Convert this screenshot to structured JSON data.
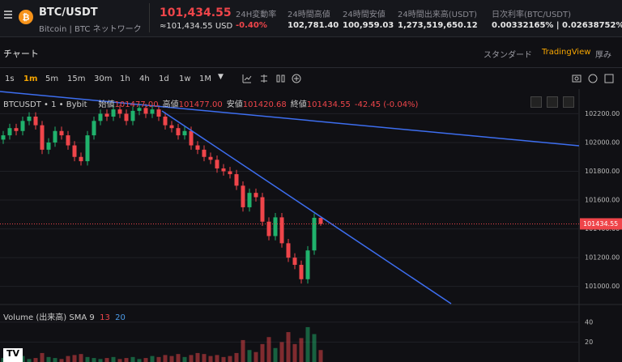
{
  "header": {
    "pair": "BTC/USDT",
    "subtitle": "Bitcoin",
    "network": "BTC ネットワーク",
    "price": "101,434.55",
    "price_usd": "≈101,434.55 USD",
    "stats": [
      {
        "label": "24H変動率",
        "value": "-0.40%"
      },
      {
        "label": "24時間高値",
        "value": "102,781.40"
      },
      {
        "label": "24時間安値",
        "value": "100,959.03"
      },
      {
        "label": "24時間出来高(USDT)",
        "value": "1,273,519,650.12"
      },
      {
        "label": "日次利率(BTC/USDT)",
        "value": "0.00332165% | 0.02638752%"
      }
    ]
  },
  "tabs": {
    "title": "チャート",
    "options": [
      "スタンダード",
      "TradingView",
      "厚み"
    ]
  },
  "toolbar": {
    "intervals": [
      "1s",
      "1m",
      "5m",
      "15m",
      "30m",
      "1h",
      "4h",
      "1d",
      "1w",
      "1M"
    ]
  },
  "legend": {
    "symbol": "BTCUSDT • 1 • Bybit",
    "items": [
      {
        "label": "始値",
        "value": "101477.00"
      },
      {
        "label": "高値",
        "value": "101477.00"
      },
      {
        "label": "安値",
        "value": "101420.68"
      },
      {
        "label": "終値",
        "value": "101434.55"
      }
    ],
    "change": "-42.45 (-0.04%)"
  },
  "chart_data": {
    "type": "candlestick",
    "up_color": "#20b26c",
    "down_color": "#ef454a",
    "ylim": [
      100880,
      102360
    ],
    "yticks": [
      {
        "value": 102200,
        "label": "102200.00"
      },
      {
        "value": 102000,
        "label": "102000.00"
      },
      {
        "value": 101800,
        "label": "101800.00"
      },
      {
        "value": 101600,
        "label": "101600.00"
      },
      {
        "value": 101400,
        "label": "101400.00"
      },
      {
        "value": 101200,
        "label": "101200.00"
      },
      {
        "value": 101000,
        "label": "101000.00"
      }
    ],
    "last_price": 101434.55,
    "open": [
      102020,
      102050,
      102100,
      102080,
      102150,
      102180,
      102120,
      101950,
      102000,
      102080,
      102050,
      101980,
      101900,
      101870,
      102050,
      102150,
      102200,
      102180,
      102230,
      102200,
      102150,
      102220,
      102240,
      102200,
      102230,
      102180,
      102120,
      102100,
      102050,
      102080,
      101980,
      101950,
      101900,
      101880,
      101820,
      101800,
      101780,
      101700,
      101550,
      101650,
      101620,
      101450,
      101350,
      101480,
      101300,
      101200,
      101150,
      101050,
      101250,
      101477
    ],
    "high": [
      102080,
      102130,
      102130,
      102180,
      102210,
      102210,
      102150,
      102030,
      102110,
      102110,
      102080,
      102010,
      101930,
      102080,
      102180,
      102230,
      102230,
      102260,
      102260,
      102230,
      102250,
      102270,
      102270,
      102260,
      102260,
      102210,
      102150,
      102130,
      102110,
      102110,
      102010,
      101980,
      101930,
      101910,
      101850,
      101830,
      101810,
      101730,
      101680,
      101680,
      101650,
      101480,
      101510,
      101510,
      101330,
      101230,
      101180,
      101280,
      101507,
      101477
    ],
    "low": [
      101990,
      102020,
      102050,
      102050,
      102120,
      102090,
      101920,
      101920,
      101970,
      102020,
      101950,
      101870,
      101840,
      101840,
      102020,
      102120,
      102150,
      102150,
      102170,
      102120,
      102120,
      102190,
      102170,
      102170,
      102150,
      102090,
      102070,
      102020,
      102020,
      101950,
      101920,
      101870,
      101850,
      101790,
      101770,
      101750,
      101670,
      101520,
      101520,
      101590,
      101420,
      101320,
      101320,
      101270,
      101170,
      101120,
      101020,
      101020,
      101220,
      101420.68
    ],
    "close": [
      102050,
      102100,
      102080,
      102150,
      102180,
      102120,
      101950,
      102000,
      102080,
      102050,
      101980,
      101900,
      101870,
      102050,
      102150,
      102200,
      102180,
      102230,
      102200,
      102150,
      102220,
      102240,
      102200,
      102230,
      102180,
      102120,
      102100,
      102050,
      102080,
      101980,
      101950,
      101900,
      101880,
      101820,
      101800,
      101780,
      101700,
      101550,
      101650,
      101620,
      101450,
      101350,
      101480,
      101300,
      101200,
      101150,
      101050,
      101250,
      101477,
      101434.55
    ],
    "volume_title": "Volume (出来高) SMA 9",
    "volume_sma": [
      13,
      20
    ],
    "volume": [
      4,
      3,
      5,
      6,
      3,
      4,
      9,
      5,
      4,
      3,
      6,
      7,
      8,
      5,
      4,
      3,
      4,
      5,
      3,
      4,
      5,
      3,
      4,
      6,
      5,
      7,
      6,
      8,
      5,
      7,
      9,
      8,
      6,
      7,
      5,
      6,
      9,
      22,
      12,
      10,
      18,
      25,
      14,
      20,
      30,
      18,
      24,
      35,
      28,
      12
    ],
    "vlim": [
      0,
      52
    ],
    "vticks": [
      20,
      40
    ]
  }
}
